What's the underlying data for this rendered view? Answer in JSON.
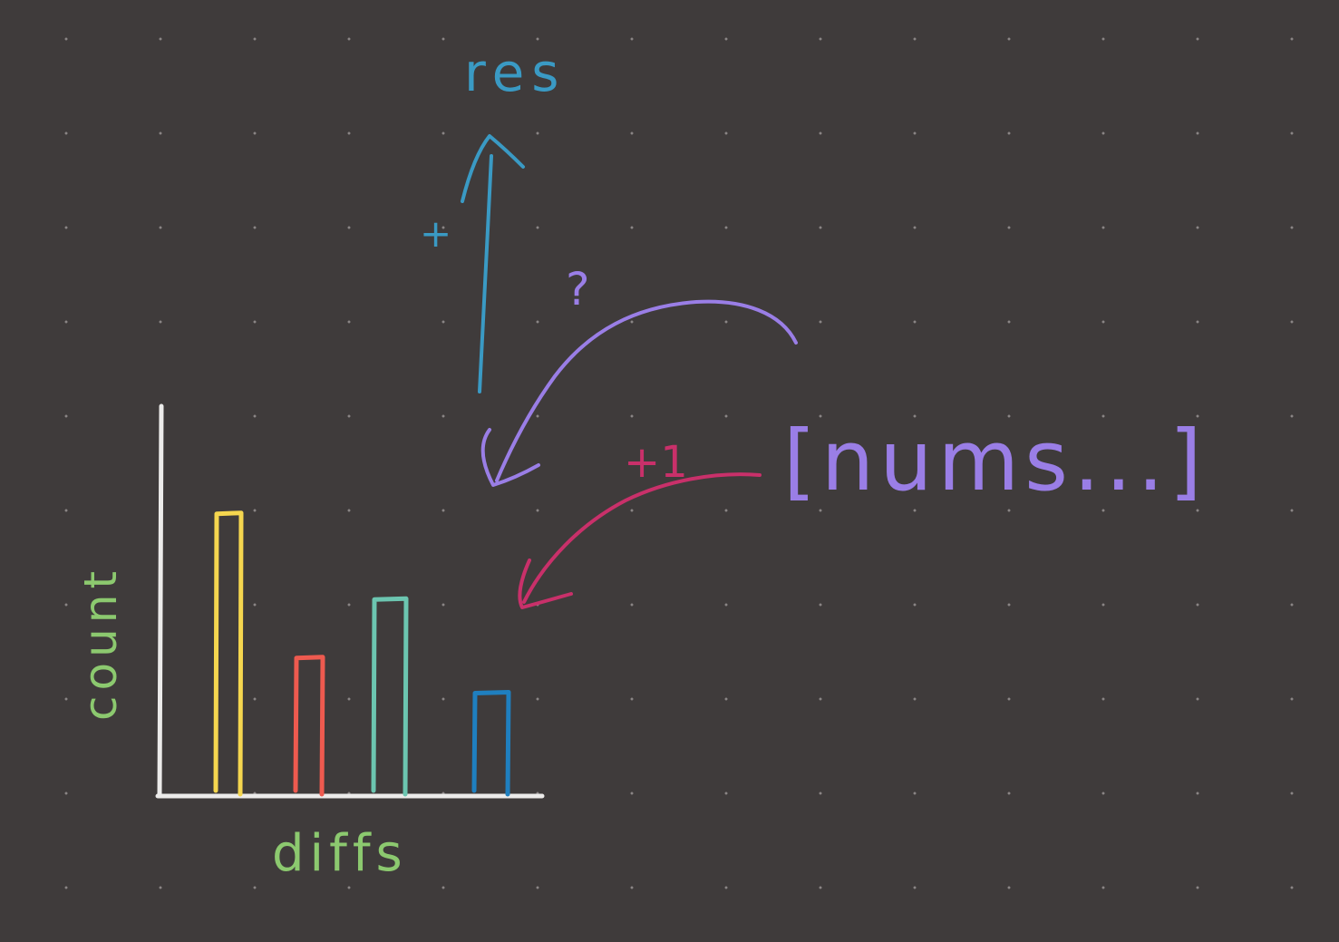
{
  "colors": {
    "background": "#3f3b3b",
    "grid_dot": "#8a8585",
    "axis": "#ecebea",
    "label_green": "#8cc96f",
    "res_blue": "#3a9ac4",
    "purple": "#9a7ee6",
    "pink": "#c9306a",
    "bars": [
      "#f5d64f",
      "#ee5a4f",
      "#6cc5b0",
      "#1f7fbf"
    ]
  },
  "labels": {
    "res": "res",
    "plus": "+",
    "question": "?",
    "plus_one": "+1",
    "nums_array": "[nums...]",
    "count_axis": "count",
    "diffs_axis": "diffs"
  },
  "chart_data": {
    "type": "bar",
    "xlabel": "diffs",
    "ylabel": "count",
    "values": [
      0.71,
      0.34,
      0.49,
      0.25
    ],
    "value_note": "relative bar heights as fraction of y-axis height",
    "colors": [
      "#f5d64f",
      "#ee5a4f",
      "#6cc5b0",
      "#1f7fbf"
    ]
  }
}
